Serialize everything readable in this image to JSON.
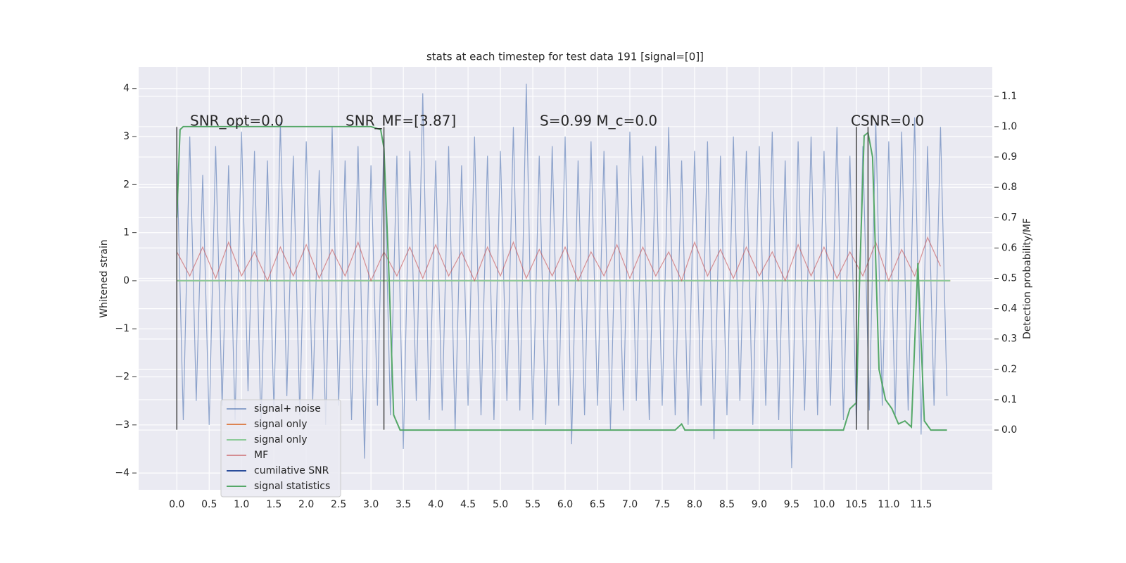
{
  "chart_data": {
    "type": "line",
    "title": "stats at each timestep for test data 191 [signal=[0]]",
    "y_label": "Whitened strain",
    "y2_label": "Detection probability/MF",
    "xlim": [
      -0.59,
      12.6
    ],
    "ylim": [
      -4.35,
      4.45
    ],
    "y2lim": [
      -0.197,
      1.197
    ],
    "xticks": [
      {
        "value": 0,
        "label": "0.0"
      },
      0.5,
      {
        "value": 1,
        "label": "1.0"
      },
      1.5,
      {
        "value": 2,
        "label": "2.0"
      },
      2.5,
      {
        "value": 3,
        "label": "3.0"
      },
      3.5,
      {
        "value": 4,
        "label": "4.0"
      },
      4.5,
      {
        "value": 5,
        "label": "5.0"
      },
      5.5,
      {
        "value": 6,
        "label": "6.0"
      },
      6.5,
      {
        "value": 7,
        "label": "7.0"
      },
      7.5,
      {
        "value": 8,
        "label": "8.0"
      },
      8.5,
      {
        "value": 9,
        "label": "9.0"
      },
      9.5,
      {
        "value": 10,
        "label": "10.0"
      },
      10.5,
      {
        "value": 11,
        "label": "11.0"
      },
      11.5
    ],
    "yticks": [
      {
        "value": -4,
        "label": "−4"
      },
      {
        "value": -3,
        "label": "−3"
      },
      {
        "value": -2,
        "label": "−2"
      },
      {
        "value": -1,
        "label": "−1"
      },
      0,
      1,
      2,
      3,
      4
    ],
    "y2ticks": [
      {
        "value": 0,
        "label": "0.0"
      },
      0.1,
      0.2,
      0.3,
      0.4,
      0.5,
      0.6,
      0.7,
      0.8,
      0.9,
      {
        "value": 1,
        "label": "1.0"
      },
      1.1
    ],
    "grid": true,
    "annotations": [
      "SNR_opt=0.0",
      "SNR_MF=[3.87]",
      "S=0.99   M_c=0.0",
      "CSNR=0.0"
    ],
    "vlines": {
      "x": [
        0,
        3.2,
        10.5,
        10.68
      ],
      "ylim": [
        -3.1,
        3.2
      ],
      "color": "#444444"
    },
    "series": [
      {
        "name": "signal+ noise",
        "color": "#4c72b0",
        "fill": true,
        "x": [
          0,
          0.1,
          0.2,
          0.3,
          0.4,
          0.5,
          0.6,
          0.7,
          0.8,
          0.9,
          1,
          1.1,
          1.2,
          1.3,
          1.4,
          1.5,
          1.6,
          1.7,
          1.8,
          1.9,
          2,
          2.1,
          2.2,
          2.3,
          2.4,
          2.5,
          2.6,
          2.7,
          2.8,
          2.9,
          3,
          3.1,
          3.2,
          3.3,
          3.4,
          3.5,
          3.6,
          3.7,
          3.8,
          3.9,
          4,
          4.1,
          4.2,
          4.3,
          4.4,
          4.5,
          4.6,
          4.7,
          4.8,
          4.9,
          5,
          5.1,
          5.2,
          5.3,
          5.4,
          5.5,
          5.6,
          5.7,
          5.8,
          5.9,
          6,
          6.1,
          6.2,
          6.3,
          6.4,
          6.5,
          6.6,
          6.7,
          6.8,
          6.9,
          7,
          7.1,
          7.2,
          7.3,
          7.4,
          7.5,
          7.6,
          7.7,
          7.8,
          7.9,
          8,
          8.1,
          8.2,
          8.3,
          8.4,
          8.5,
          8.6,
          8.7,
          8.8,
          8.9,
          9,
          9.1,
          9.2,
          9.3,
          9.4,
          9.5,
          9.6,
          9.7,
          9.8,
          9.9,
          10,
          10.1,
          10.2,
          10.3,
          10.4,
          10.5,
          10.6,
          10.7,
          10.8,
          10.9,
          11,
          11.1,
          11.2,
          11.3,
          11.4,
          11.5,
          11.6,
          11.7,
          11.8,
          11.9
        ],
        "values": [
          2.6,
          -2.9,
          3.0,
          -2.5,
          2.2,
          -3.0,
          2.8,
          -2.6,
          2.4,
          -2.9,
          3.1,
          -2.3,
          2.7,
          -3.1,
          2.5,
          -2.7,
          3.3,
          -2.4,
          2.6,
          -2.8,
          2.9,
          -2.5,
          2.3,
          -3.0,
          3.2,
          -2.6,
          2.5,
          -2.9,
          2.8,
          -3.7,
          2.4,
          -2.6,
          3.0,
          -2.8,
          2.6,
          -3.5,
          2.7,
          -2.5,
          3.9,
          -2.9,
          2.5,
          -2.7,
          2.8,
          -3.1,
          2.4,
          -2.6,
          3.0,
          -2.8,
          2.6,
          -2.9,
          2.7,
          -2.5,
          3.2,
          -2.7,
          4.1,
          -2.9,
          2.6,
          -3.0,
          2.8,
          -2.6,
          3.0,
          -3.4,
          2.5,
          -2.8,
          2.9,
          -2.6,
          2.7,
          -3.1,
          2.4,
          -2.7,
          3.1,
          -2.5,
          2.6,
          -2.9,
          2.8,
          -2.6,
          3.2,
          -2.8,
          2.5,
          -3.0,
          2.7,
          -2.6,
          2.9,
          -3.3,
          2.6,
          -2.8,
          3.0,
          -2.5,
          2.7,
          -3.0,
          2.8,
          -2.6,
          3.1,
          -2.9,
          2.5,
          -3.9,
          2.9,
          -2.7,
          3.0,
          -2.8,
          2.7,
          -2.6,
          3.2,
          -2.9,
          2.6,
          -3.0,
          2.8,
          -2.7,
          3.3,
          -2.6,
          2.9,
          -2.8,
          3.1,
          -2.7,
          3.4,
          -3.2,
          2.8,
          -2.6,
          3.2,
          -2.4
        ]
      },
      {
        "name": "signal only",
        "color": "#dd8452",
        "x": [
          0,
          11.95
        ],
        "values": [
          0,
          0
        ]
      },
      {
        "name": "signal only",
        "color": "#8dcb99",
        "x": [
          0,
          11.95
        ],
        "values": [
          0,
          0
        ]
      },
      {
        "name": "MF",
        "color": "#c44e52",
        "fill": true,
        "x": [
          0,
          0.2,
          0.4,
          0.6,
          0.8,
          1,
          1.2,
          1.4,
          1.6,
          1.8,
          2,
          2.2,
          2.4,
          2.6,
          2.8,
          3,
          3.2,
          3.4,
          3.6,
          3.8,
          4,
          4.2,
          4.4,
          4.6,
          4.8,
          5,
          5.2,
          5.4,
          5.6,
          5.8,
          6,
          6.2,
          6.4,
          6.6,
          6.8,
          7,
          7.2,
          7.4,
          7.6,
          7.8,
          8,
          8.2,
          8.4,
          8.6,
          8.8,
          9,
          9.2,
          9.4,
          9.6,
          9.8,
          10,
          10.2,
          10.4,
          10.6,
          10.8,
          11,
          11.2,
          11.4,
          11.6,
          11.8
        ],
        "values": [
          0.6,
          0.1,
          0.7,
          0.05,
          0.8,
          0.1,
          0.6,
          0.0,
          0.7,
          0.1,
          0.75,
          0.05,
          0.65,
          0.1,
          0.8,
          0.0,
          0.6,
          0.1,
          0.7,
          0.05,
          0.75,
          0.1,
          0.6,
          0.0,
          0.7,
          0.1,
          0.8,
          0.05,
          0.65,
          0.1,
          0.7,
          0.0,
          0.6,
          0.1,
          0.75,
          0.05,
          0.7,
          0.1,
          0.6,
          0.0,
          0.8,
          0.1,
          0.65,
          0.05,
          0.7,
          0.1,
          0.6,
          0.0,
          0.75,
          0.1,
          0.7,
          0.05,
          0.6,
          0.1,
          0.8,
          0.0,
          0.65,
          0.1,
          0.9,
          0.3
        ]
      },
      {
        "name": "cumilative SNR",
        "color": "#2a4d9b",
        "x": [],
        "values": []
      },
      {
        "name": "signal statistics",
        "color": "#55a868",
        "axis": "y2",
        "x": [
          0,
          0.05,
          0.1,
          3.0,
          3.15,
          3.2,
          3.28,
          3.35,
          3.45,
          7.7,
          7.8,
          7.85,
          8.0,
          8.5,
          9.5,
          10.0,
          10.3,
          10.4,
          10.5,
          10.55,
          10.62,
          10.68,
          10.75,
          10.85,
          10.95,
          11.05,
          11.15,
          11.25,
          11.35,
          11.45,
          11.55,
          11.65,
          11.8,
          11.9
        ],
        "values": [
          0.7,
          0.99,
          1.0,
          1.0,
          0.99,
          0.93,
          0.5,
          0.05,
          0.0,
          0.0,
          0.02,
          0.0,
          0.0,
          0.0,
          0.0,
          0.0,
          0.0,
          0.07,
          0.09,
          0.5,
          0.97,
          0.98,
          0.9,
          0.2,
          0.1,
          0.07,
          0.02,
          0.03,
          0.01,
          0.55,
          0.03,
          0.0,
          0.0,
          0.0
        ]
      }
    ]
  }
}
